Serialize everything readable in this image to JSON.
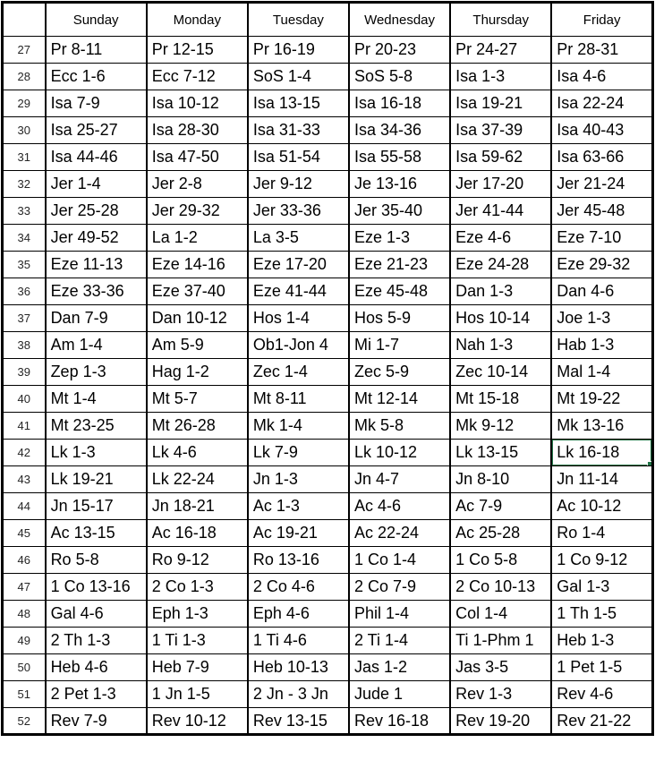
{
  "table": {
    "corner_label": "",
    "day_headers": [
      "Sunday",
      "Monday",
      "Tuesday",
      "Wednesday",
      "Thursday",
      "Friday"
    ],
    "rows": [
      {
        "week": "27",
        "cells": [
          "Pr 8-11",
          "Pr 12-15",
          "Pr 16-19",
          "Pr 20-23",
          "Pr 24-27",
          "Pr 28-31"
        ]
      },
      {
        "week": "28",
        "cells": [
          "Ecc 1-6",
          "Ecc 7-12",
          "SoS 1-4",
          "SoS 5-8",
          "Isa 1-3",
          "Isa 4-6"
        ]
      },
      {
        "week": "29",
        "cells": [
          "Isa 7-9",
          "Isa 10-12",
          "Isa 13-15",
          "Isa 16-18",
          "Isa 19-21",
          "Isa 22-24"
        ]
      },
      {
        "week": "30",
        "cells": [
          "Isa 25-27",
          "Isa 28-30",
          "Isa 31-33",
          "Isa 34-36",
          "Isa 37-39",
          "Isa 40-43"
        ]
      },
      {
        "week": "31",
        "cells": [
          "Isa 44-46",
          "Isa 47-50",
          "Isa 51-54",
          "Isa 55-58",
          "Isa 59-62",
          "Isa 63-66"
        ]
      },
      {
        "week": "32",
        "cells": [
          "Jer 1-4",
          "Jer 2-8",
          "Jer 9-12",
          "Je 13-16",
          "Jer 17-20",
          "Jer 21-24"
        ]
      },
      {
        "week": "33",
        "cells": [
          "Jer 25-28",
          "Jer 29-32",
          "Jer 33-36",
          "Jer 35-40",
          "Jer 41-44",
          "Jer 45-48"
        ]
      },
      {
        "week": "34",
        "cells": [
          "Jer 49-52",
          "La 1-2",
          "La 3-5",
          "Eze 1-3",
          "Eze 4-6",
          "Eze 7-10"
        ]
      },
      {
        "week": "35",
        "cells": [
          "Eze 11-13",
          "Eze 14-16",
          "Eze 17-20",
          "Eze 21-23",
          "Eze 24-28",
          "Eze 29-32"
        ]
      },
      {
        "week": "36",
        "cells": [
          "Eze 33-36",
          "Eze 37-40",
          "Eze 41-44",
          "Eze 45-48",
          "Dan 1-3",
          "Dan 4-6"
        ]
      },
      {
        "week": "37",
        "cells": [
          "Dan 7-9",
          "Dan 10-12",
          "Hos 1-4",
          "Hos 5-9",
          "Hos 10-14",
          "Joe 1-3"
        ]
      },
      {
        "week": "38",
        "cells": [
          "Am 1-4",
          "Am 5-9",
          "Ob1-Jon 4",
          "Mi 1-7",
          "Nah 1-3",
          "Hab 1-3"
        ]
      },
      {
        "week": "39",
        "cells": [
          "Zep 1-3",
          "Hag 1-2",
          "Zec 1-4",
          "Zec 5-9",
          "Zec 10-14",
          "Mal 1-4"
        ]
      },
      {
        "week": "40",
        "cells": [
          "Mt 1-4",
          "Mt 5-7",
          "Mt 8-11",
          "Mt 12-14",
          "Mt 15-18",
          "Mt 19-22"
        ]
      },
      {
        "week": "41",
        "cells": [
          "Mt 23-25",
          "Mt 26-28",
          "Mk 1-4",
          "Mk 5-8",
          "Mk 9-12",
          "Mk 13-16"
        ]
      },
      {
        "week": "42",
        "cells": [
          "Lk 1-3",
          "Lk 4-6",
          "Lk 7-9",
          "Lk 10-12",
          "Lk 13-15",
          "Lk 16-18"
        ]
      },
      {
        "week": "43",
        "cells": [
          "Lk 19-21",
          "Lk 22-24",
          "Jn 1-3",
          "Jn 4-7",
          "Jn 8-10",
          "Jn 11-14"
        ]
      },
      {
        "week": "44",
        "cells": [
          "Jn 15-17",
          "Jn 18-21",
          "Ac 1-3",
          "Ac 4-6",
          "Ac 7-9",
          "Ac 10-12"
        ]
      },
      {
        "week": "45",
        "cells": [
          "Ac 13-15",
          "Ac 16-18",
          "Ac 19-21",
          "Ac 22-24",
          "Ac 25-28",
          "Ro 1-4"
        ]
      },
      {
        "week": "46",
        "cells": [
          "Ro 5-8",
          "Ro 9-12",
          "Ro 13-16",
          "1 Co 1-4",
          "1 Co 5-8",
          "1 Co 9-12"
        ]
      },
      {
        "week": "47",
        "cells": [
          "1 Co 13-16",
          "2 Co 1-3",
          "2 Co 4-6",
          "2 Co 7-9",
          "2 Co 10-13",
          "Gal 1-3"
        ]
      },
      {
        "week": "48",
        "cells": [
          "Gal 4-6",
          "Eph 1-3",
          "Eph 4-6",
          "Phil 1-4",
          "Col 1-4",
          "1 Th 1-5"
        ]
      },
      {
        "week": "49",
        "cells": [
          "2 Th 1-3",
          "1 Ti 1-3",
          "1 Ti 4-6",
          "2 Ti 1-4",
          "Ti 1-Phm 1",
          "Heb 1-3"
        ]
      },
      {
        "week": "50",
        "cells": [
          "Heb 4-6",
          "Heb 7-9",
          "Heb 10-13",
          "Jas 1-2",
          "Jas 3-5",
          "1 Pet 1-5"
        ]
      },
      {
        "week": "51",
        "cells": [
          "2 Pet 1-3",
          "1 Jn 1-5",
          "2 Jn - 3 Jn",
          "Jude 1",
          "Rev 1-3",
          "Rev 4-6"
        ]
      },
      {
        "week": "52",
        "cells": [
          "Rev 7-9",
          "Rev 10-12",
          "Rev 13-15",
          "Rev 16-18",
          "Rev 19-20",
          "Rev 21-22"
        ]
      }
    ]
  },
  "selection": {
    "week": "42",
    "day": "Friday",
    "value": "Lk 16-18"
  },
  "colors": {
    "selection_border": "#217346",
    "grid": "#000000",
    "background": "#ffffff",
    "text": "#000000"
  }
}
